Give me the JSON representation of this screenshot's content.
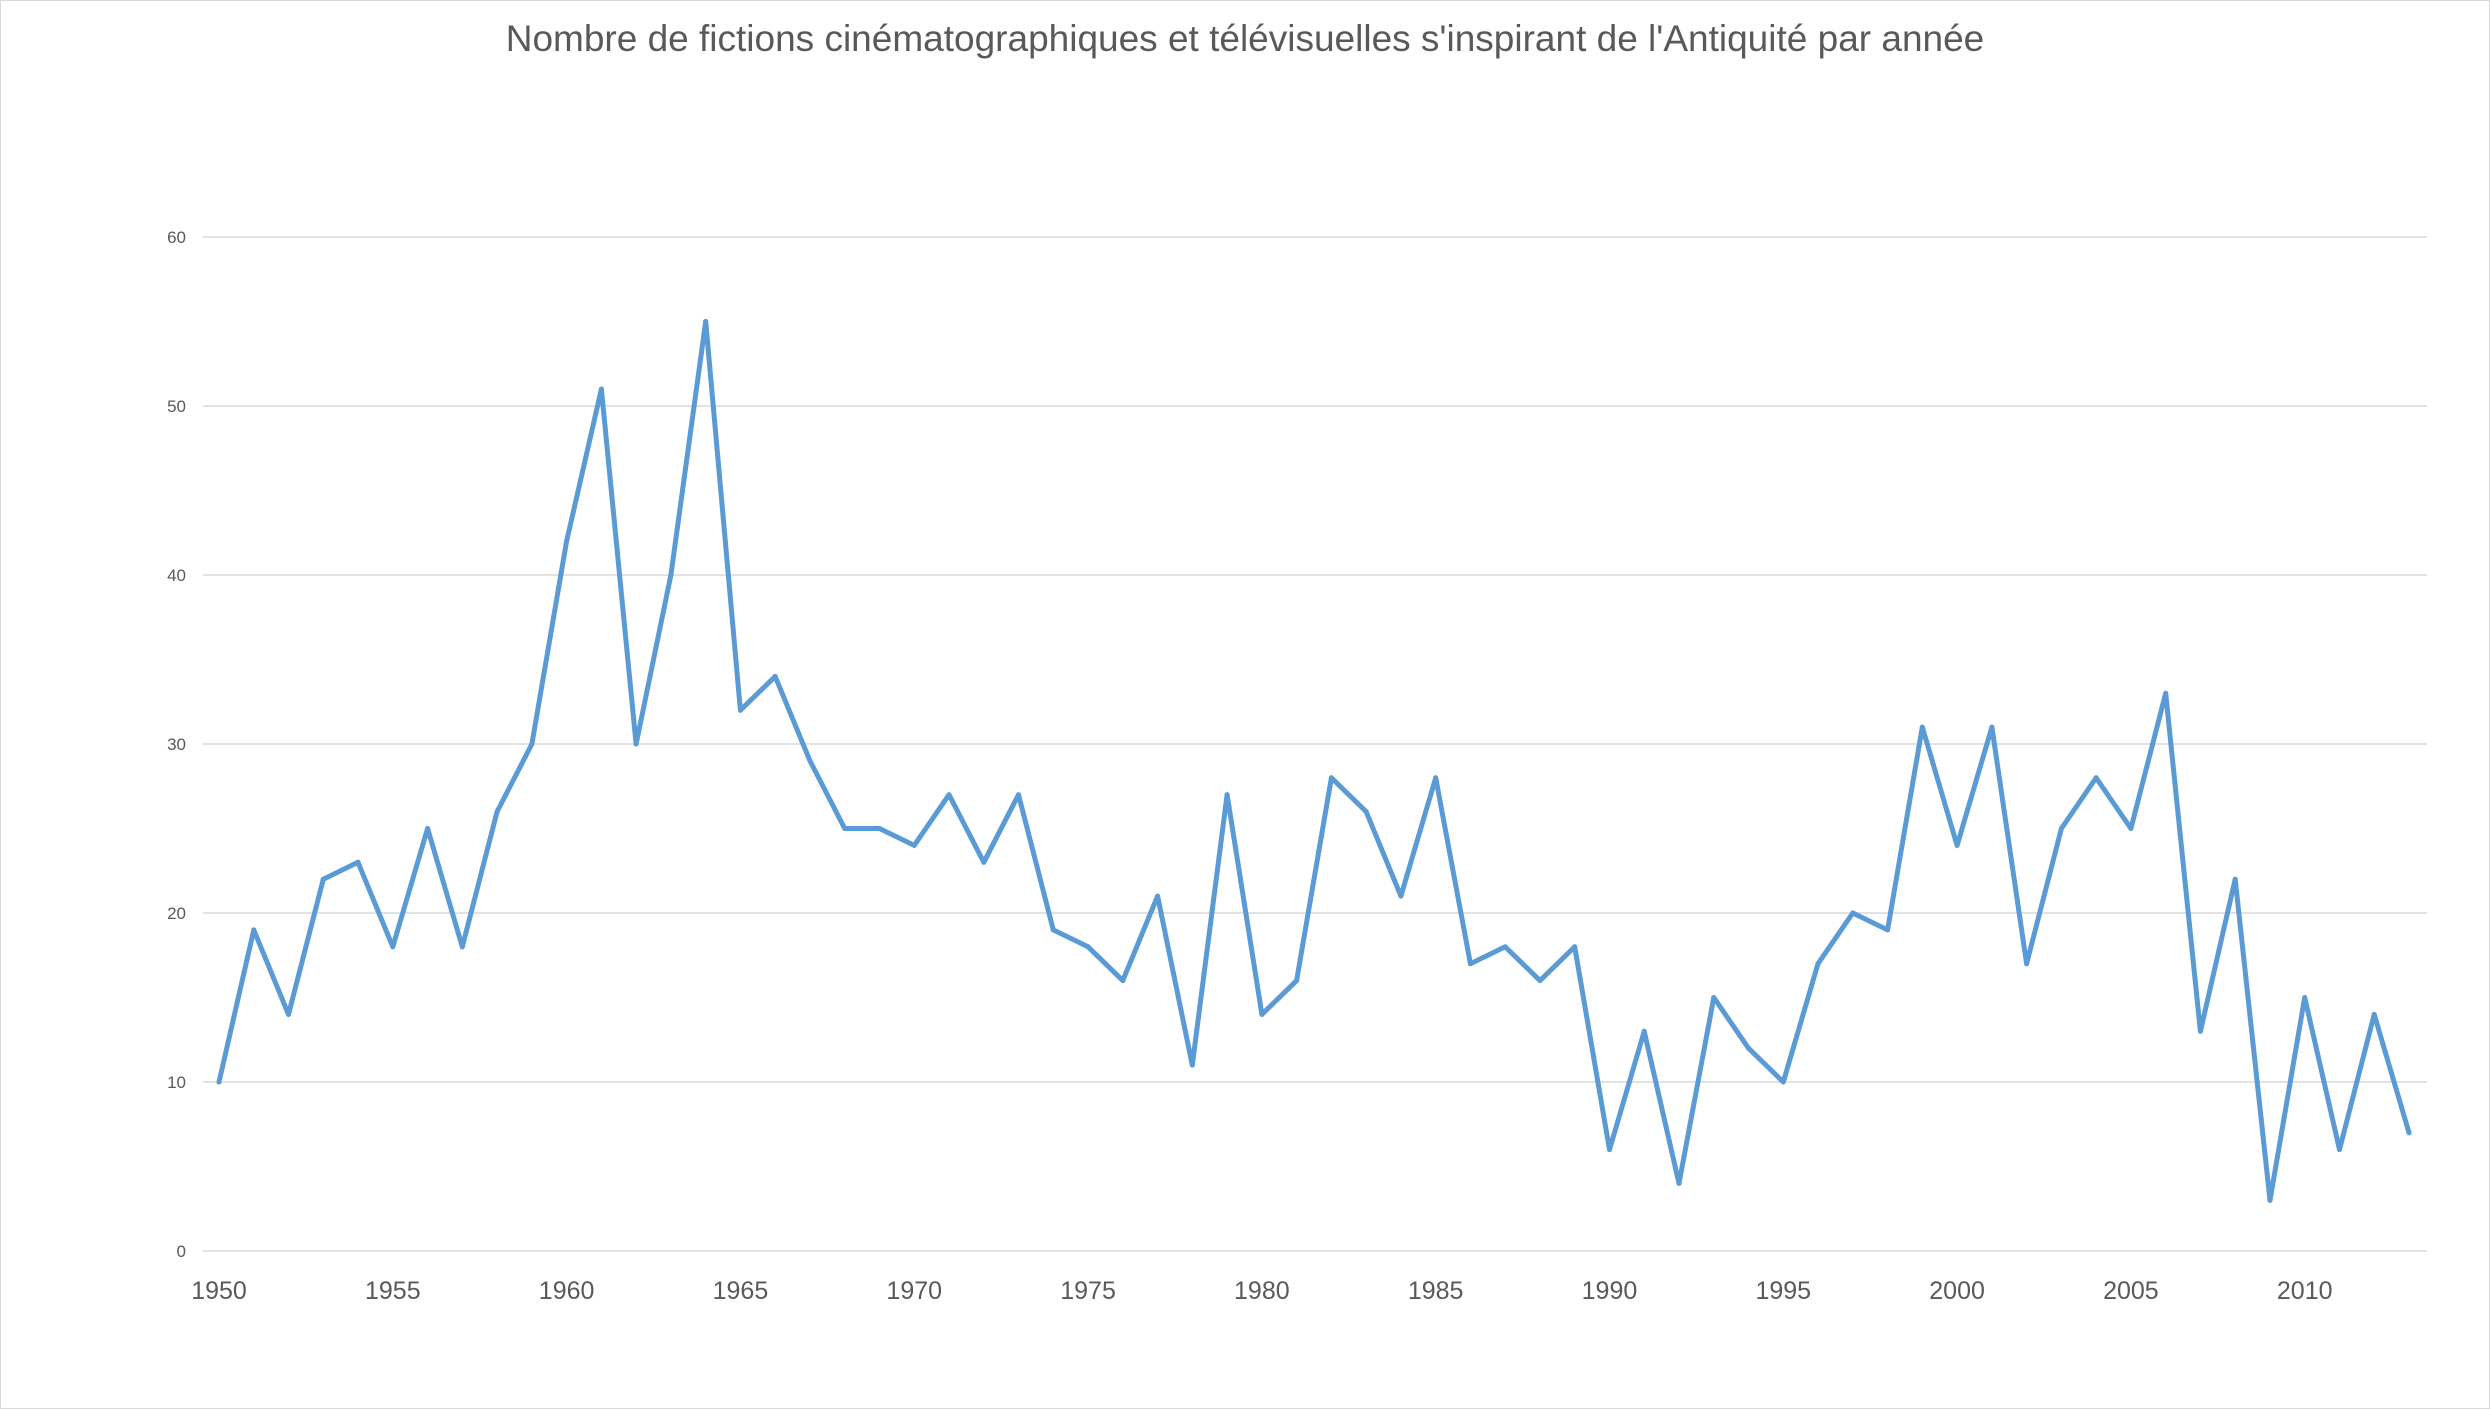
{
  "chart_data": {
    "type": "line",
    "title": "Nombre de fictions cinématographiques et télévisuelles s'inspirant de l'Antiquité par année",
    "xlabel": "",
    "ylabel": "",
    "ylim": [
      0,
      60
    ],
    "xlim": [
      1950,
      2013
    ],
    "yticks": [
      0,
      10,
      20,
      30,
      40,
      50,
      60
    ],
    "xticks": [
      1950,
      1955,
      1960,
      1965,
      1970,
      1975,
      1980,
      1985,
      1990,
      1995,
      2000,
      2005,
      2010
    ],
    "grid": true,
    "legend": "none",
    "line_color": "#5b9bd5",
    "series": [
      {
        "x": [
          1950,
          1951,
          1952,
          1953,
          1954,
          1955,
          1956,
          1957,
          1958,
          1959,
          1960,
          1961,
          1962,
          1963,
          1964,
          1965,
          1966,
          1967,
          1968,
          1969,
          1970,
          1971,
          1972,
          1973,
          1974,
          1975,
          1976,
          1977,
          1978,
          1979,
          1980,
          1981,
          1982,
          1983,
          1984,
          1985,
          1986,
          1987,
          1988,
          1989,
          1990,
          1991,
          1992,
          1993,
          1994,
          1995,
          1996,
          1997,
          1998,
          1999,
          2000,
          2001,
          2002,
          2003,
          2004,
          2005,
          2006,
          2007,
          2008,
          2009,
          2010,
          2011,
          2012,
          2013
        ],
        "values": [
          10,
          19,
          14,
          22,
          23,
          18,
          25,
          18,
          26,
          30,
          42,
          51,
          30,
          40,
          55,
          32,
          34,
          29,
          25,
          25,
          24,
          27,
          23,
          27,
          19,
          18,
          16,
          21,
          11,
          27,
          14,
          16,
          28,
          26,
          21,
          28,
          17,
          18,
          16,
          18,
          6,
          13,
          4,
          15,
          12,
          10,
          17,
          20,
          19,
          31,
          24,
          31,
          17,
          25,
          28,
          25,
          33,
          13,
          22,
          3,
          15,
          6,
          14,
          7
        ]
      }
    ]
  }
}
